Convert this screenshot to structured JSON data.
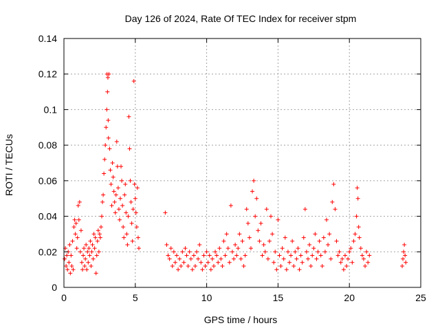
{
  "chart_data": {
    "type": "scatter",
    "title": "Day 126 of 2024, Rate Of TEC Index for receiver stpm",
    "xlabel": "GPS time / hours",
    "ylabel": "ROTI / TECUs",
    "xlim": [
      0,
      25
    ],
    "ylim": [
      0,
      0.14
    ],
    "xticks": [
      0,
      5,
      10,
      15,
      20,
      25
    ],
    "yticks": [
      0,
      0.02,
      0.04,
      0.06,
      0.08,
      0.1,
      0.12,
      0.14
    ],
    "xtick_labels": [
      "0",
      "5",
      "10",
      "15",
      "20",
      "25"
    ],
    "ytick_labels": [
      "0",
      "0.02",
      "0.04",
      "0.06",
      "0.08",
      "0.1",
      "0.12",
      "0.14"
    ],
    "grid": true,
    "marker": "+",
    "color": "#ff0000",
    "series": [
      {
        "name": "ROTI",
        "points": [
          [
            0.05,
            0.016
          ],
          [
            0.1,
            0.022
          ],
          [
            0.15,
            0.012
          ],
          [
            0.2,
            0.018
          ],
          [
            0.25,
            0.01
          ],
          [
            0.3,
            0.02
          ],
          [
            0.35,
            0.014
          ],
          [
            0.4,
            0.024
          ],
          [
            0.45,
            0.008
          ],
          [
            0.5,
            0.018
          ],
          [
            0.55,
            0.012
          ],
          [
            0.6,
            0.026
          ],
          [
            0.65,
            0.01
          ],
          [
            0.7,
            0.034
          ],
          [
            0.75,
            0.038
          ],
          [
            0.8,
            0.03
          ],
          [
            0.85,
            0.036
          ],
          [
            0.9,
            0.022
          ],
          [
            0.95,
            0.028
          ],
          [
            1.0,
            0.046
          ],
          [
            1.05,
            0.038
          ],
          [
            1.1,
            0.048
          ],
          [
            1.15,
            0.02
          ],
          [
            1.2,
            0.032
          ],
          [
            1.25,
            0.014
          ],
          [
            1.3,
            0.01
          ],
          [
            1.35,
            0.018
          ],
          [
            1.4,
            0.022
          ],
          [
            1.45,
            0.012
          ],
          [
            1.5,
            0.016
          ],
          [
            1.55,
            0.024
          ],
          [
            1.6,
            0.01
          ],
          [
            1.65,
            0.02
          ],
          [
            1.7,
            0.014
          ],
          [
            1.75,
            0.022
          ],
          [
            1.8,
            0.018
          ],
          [
            1.85,
            0.026
          ],
          [
            1.9,
            0.012
          ],
          [
            1.95,
            0.02
          ],
          [
            2.0,
            0.024
          ],
          [
            2.05,
            0.016
          ],
          [
            2.1,
            0.03
          ],
          [
            2.15,
            0.022
          ],
          [
            2.2,
            0.028
          ],
          [
            2.25,
            0.008
          ],
          [
            2.3,
            0.018
          ],
          [
            2.35,
            0.026
          ],
          [
            2.4,
            0.032
          ],
          [
            2.45,
            0.02
          ],
          [
            2.5,
            0.03
          ],
          [
            2.55,
            0.028
          ],
          [
            2.6,
            0.034
          ],
          [
            2.65,
            0.04
          ],
          [
            2.7,
            0.048
          ],
          [
            2.75,
            0.052
          ],
          [
            2.8,
            0.064
          ],
          [
            2.85,
            0.072
          ],
          [
            2.9,
            0.08
          ],
          [
            2.95,
            0.09
          ],
          [
            3.0,
            0.1
          ],
          [
            3.02,
            0.12
          ],
          [
            3.05,
            0.11
          ],
          [
            3.08,
            0.118
          ],
          [
            3.1,
            0.094
          ],
          [
            3.12,
            0.084
          ],
          [
            3.15,
            0.12
          ],
          [
            3.2,
            0.078
          ],
          [
            3.25,
            0.066
          ],
          [
            3.3,
            0.058
          ],
          [
            3.35,
            0.046
          ],
          [
            3.4,
            0.07
          ],
          [
            3.45,
            0.062
          ],
          [
            3.5,
            0.054
          ],
          [
            3.55,
            0.048
          ],
          [
            3.6,
            0.042
          ],
          [
            3.65,
            0.052
          ],
          [
            3.7,
            0.082
          ],
          [
            3.75,
            0.068
          ],
          [
            3.8,
            0.056
          ],
          [
            3.85,
            0.044
          ],
          [
            3.9,
            0.038
          ],
          [
            3.95,
            0.05
          ],
          [
            4.0,
            0.068
          ],
          [
            4.05,
            0.06
          ],
          [
            4.1,
            0.046
          ],
          [
            4.15,
            0.034
          ],
          [
            4.2,
            0.028
          ],
          [
            4.25,
            0.052
          ],
          [
            4.3,
            0.058
          ],
          [
            4.35,
            0.042
          ],
          [
            4.4,
            0.03
          ],
          [
            4.45,
            0.024
          ],
          [
            4.5,
            0.04
          ],
          [
            4.55,
            0.096
          ],
          [
            4.6,
            0.078
          ],
          [
            4.65,
            0.06
          ],
          [
            4.7,
            0.048
          ],
          [
            4.75,
            0.036
          ],
          [
            4.8,
            0.026
          ],
          [
            4.85,
            0.044
          ],
          [
            4.9,
            0.116
          ],
          [
            4.95,
            0.058
          ],
          [
            5.0,
            0.05
          ],
          [
            5.05,
            0.042
          ],
          [
            5.1,
            0.034
          ],
          [
            5.15,
            0.056
          ],
          [
            5.2,
            0.028
          ],
          [
            5.25,
            0.022
          ],
          [
            7.1,
            0.042
          ],
          [
            7.2,
            0.024
          ],
          [
            7.3,
            0.018
          ],
          [
            7.4,
            0.016
          ],
          [
            7.5,
            0.022
          ],
          [
            7.6,
            0.012
          ],
          [
            7.7,
            0.02
          ],
          [
            7.8,
            0.014
          ],
          [
            7.9,
            0.018
          ],
          [
            8.0,
            0.01
          ],
          [
            8.1,
            0.016
          ],
          [
            8.2,
            0.012
          ],
          [
            8.3,
            0.02
          ],
          [
            8.4,
            0.014
          ],
          [
            8.5,
            0.022
          ],
          [
            8.6,
            0.018
          ],
          [
            8.7,
            0.012
          ],
          [
            8.8,
            0.02
          ],
          [
            8.9,
            0.016
          ],
          [
            9.0,
            0.01
          ],
          [
            9.1,
            0.018
          ],
          [
            9.2,
            0.012
          ],
          [
            9.3,
            0.02
          ],
          [
            9.4,
            0.016
          ],
          [
            9.5,
            0.024
          ],
          [
            9.6,
            0.014
          ],
          [
            9.7,
            0.01
          ],
          [
            9.8,
            0.018
          ],
          [
            9.9,
            0.012
          ],
          [
            10.0,
            0.02
          ],
          [
            10.1,
            0.014
          ],
          [
            10.2,
            0.018
          ],
          [
            10.3,
            0.01
          ],
          [
            10.4,
            0.016
          ],
          [
            10.5,
            0.012
          ],
          [
            10.6,
            0.02
          ],
          [
            10.7,
            0.018
          ],
          [
            10.8,
            0.014
          ],
          [
            10.9,
            0.022
          ],
          [
            11.0,
            0.016
          ],
          [
            11.1,
            0.012
          ],
          [
            11.2,
            0.026
          ],
          [
            11.3,
            0.018
          ],
          [
            11.4,
            0.03
          ],
          [
            11.5,
            0.022
          ],
          [
            11.6,
            0.014
          ],
          [
            11.7,
            0.046
          ],
          [
            11.8,
            0.02
          ],
          [
            11.9,
            0.016
          ],
          [
            12.0,
            0.024
          ],
          [
            12.1,
            0.018
          ],
          [
            12.2,
            0.022
          ],
          [
            12.3,
            0.03
          ],
          [
            12.4,
            0.016
          ],
          [
            12.5,
            0.026
          ],
          [
            12.6,
            0.012
          ],
          [
            12.7,
            0.018
          ],
          [
            12.8,
            0.044
          ],
          [
            12.9,
            0.036
          ],
          [
            13.0,
            0.028
          ],
          [
            13.1,
            0.022
          ],
          [
            13.2,
            0.054
          ],
          [
            13.3,
            0.06
          ],
          [
            13.4,
            0.04
          ],
          [
            13.5,
            0.05
          ],
          [
            13.6,
            0.032
          ],
          [
            13.7,
            0.026
          ],
          [
            13.8,
            0.036
          ],
          [
            13.9,
            0.018
          ],
          [
            14.0,
            0.024
          ],
          [
            14.1,
            0.02
          ],
          [
            14.2,
            0.044
          ],
          [
            14.3,
            0.016
          ],
          [
            14.4,
            0.026
          ],
          [
            14.5,
            0.04
          ],
          [
            14.6,
            0.03
          ],
          [
            14.7,
            0.014
          ],
          [
            14.8,
            0.02
          ],
          [
            14.9,
            0.01
          ],
          [
            15.0,
            0.038
          ],
          [
            15.1,
            0.018
          ],
          [
            15.2,
            0.012
          ],
          [
            15.3,
            0.022
          ],
          [
            15.4,
            0.016
          ],
          [
            15.5,
            0.028
          ],
          [
            15.6,
            0.01
          ],
          [
            15.7,
            0.02
          ],
          [
            15.8,
            0.014
          ],
          [
            15.9,
            0.018
          ],
          [
            16.0,
            0.026
          ],
          [
            16.1,
            0.012
          ],
          [
            16.2,
            0.02
          ],
          [
            16.3,
            0.016
          ],
          [
            16.4,
            0.022
          ],
          [
            16.5,
            0.01
          ],
          [
            16.6,
            0.018
          ],
          [
            16.7,
            0.014
          ],
          [
            16.8,
            0.028
          ],
          [
            16.9,
            0.044
          ],
          [
            17.0,
            0.02
          ],
          [
            17.1,
            0.016
          ],
          [
            17.2,
            0.024
          ],
          [
            17.3,
            0.012
          ],
          [
            17.4,
            0.018
          ],
          [
            17.5,
            0.022
          ],
          [
            17.6,
            0.03
          ],
          [
            17.7,
            0.016
          ],
          [
            17.8,
            0.02
          ],
          [
            17.9,
            0.026
          ],
          [
            18.0,
            0.018
          ],
          [
            18.1,
            0.012
          ],
          [
            18.2,
            0.028
          ],
          [
            18.3,
            0.02
          ],
          [
            18.4,
            0.038
          ],
          [
            18.5,
            0.024
          ],
          [
            18.6,
            0.03
          ],
          [
            18.7,
            0.016
          ],
          [
            18.8,
            0.048
          ],
          [
            18.9,
            0.058
          ],
          [
            19.0,
            0.044
          ],
          [
            19.1,
            0.026
          ],
          [
            19.2,
            0.018
          ],
          [
            19.3,
            0.02
          ],
          [
            19.4,
            0.014
          ],
          [
            19.5,
            0.016
          ],
          [
            19.6,
            0.01
          ],
          [
            19.7,
            0.018
          ],
          [
            19.8,
            0.012
          ],
          [
            19.9,
            0.016
          ],
          [
            20.0,
            0.02
          ],
          [
            20.1,
            0.022
          ],
          [
            20.2,
            0.014
          ],
          [
            20.3,
            0.026
          ],
          [
            20.4,
            0.03
          ],
          [
            20.5,
            0.04
          ],
          [
            20.55,
            0.056
          ],
          [
            20.6,
            0.05
          ],
          [
            20.65,
            0.034
          ],
          [
            20.7,
            0.028
          ],
          [
            20.8,
            0.022
          ],
          [
            20.9,
            0.018
          ],
          [
            21.0,
            0.016
          ],
          [
            21.1,
            0.012
          ],
          [
            21.2,
            0.02
          ],
          [
            21.3,
            0.014
          ],
          [
            21.4,
            0.018
          ],
          [
            23.7,
            0.012
          ],
          [
            23.75,
            0.016
          ],
          [
            23.8,
            0.02
          ],
          [
            23.85,
            0.024
          ],
          [
            23.9,
            0.018
          ],
          [
            23.95,
            0.014
          ]
        ]
      }
    ]
  }
}
